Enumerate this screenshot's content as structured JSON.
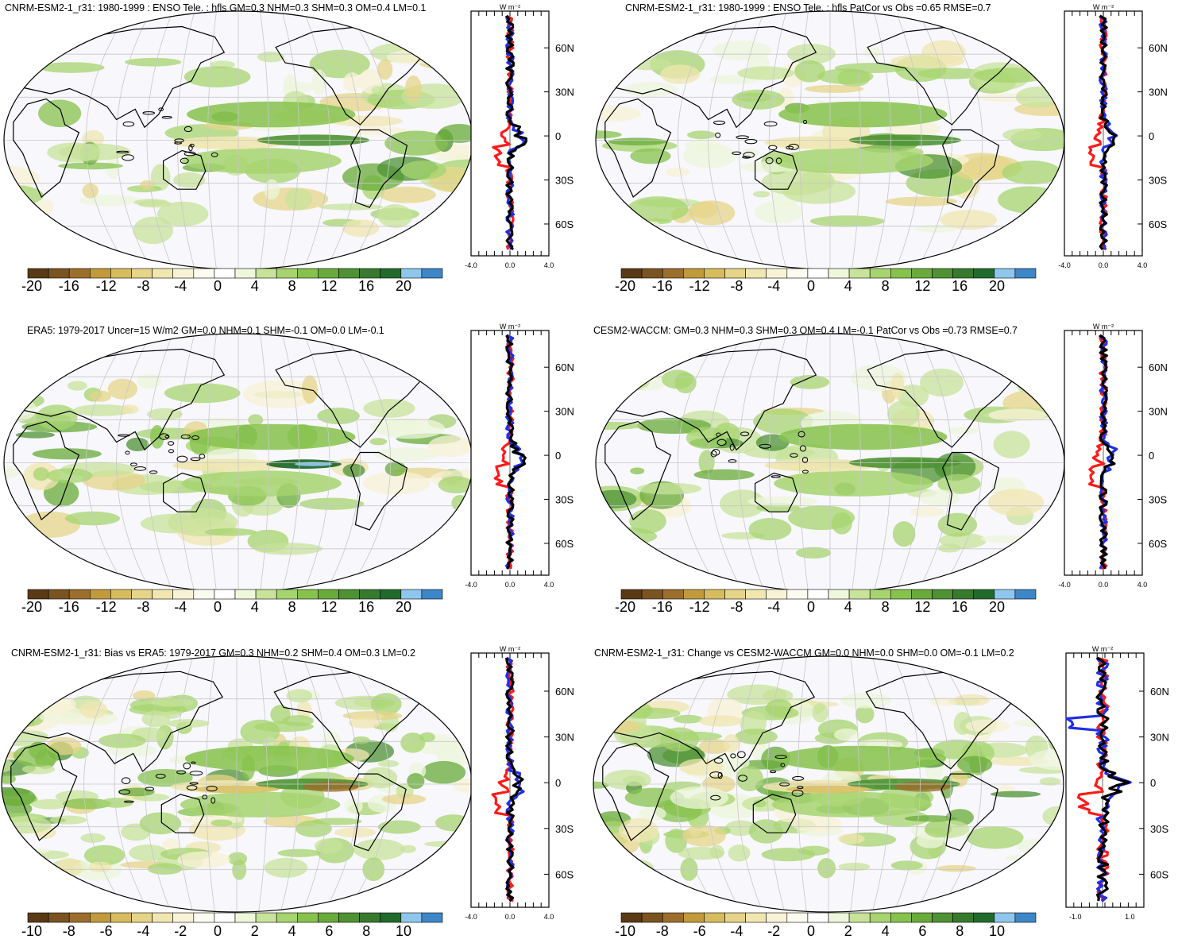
{
  "colormap": {
    "colors": [
      "#5a3a14",
      "#7a5420",
      "#9c6e2c",
      "#c19a3c",
      "#d7bc5e",
      "#e6d488",
      "#f0e6b0",
      "#f8f2d6",
      "#fcfbef",
      "#ffffff",
      "#eef6dc",
      "#c7e39a",
      "#a6d46e",
      "#86c24c",
      "#68ab3a",
      "#4e9234",
      "#377a2e",
      "#226a2c",
      "#8ec6ee",
      "#3d87c8"
    ]
  },
  "series_colors": {
    "red": "#ff1a1a",
    "blue": "#1f2fe6",
    "black": "#000000"
  },
  "panels": [
    {
      "id": "p1",
      "title": "CNRM-ESM2-1_r31: 1980-1999 : ENSO Tele. : hfls GM=0.3 NHM=0.3 SHM=0.3 OM=0.4 LM=0.1",
      "cbar_labels": [
        "-20",
        "-16",
        "-12",
        "-8",
        "-4",
        "0",
        "4",
        "8",
        "12",
        "16",
        "20"
      ],
      "unit": "W m⁻²",
      "lat_labels": [
        "60N",
        "30N",
        "0",
        "30S",
        "60S"
      ],
      "prof_ticks": [
        "-4.0",
        "0.0",
        "4.0"
      ]
    },
    {
      "id": "p2",
      "title": "CNRM-ESM2-1_r31: 1980-1999 : ENSO Tele. : hfls PatCor vs Obs =0.65 RMSE=0.7",
      "cbar_labels": [
        "-20",
        "-16",
        "-12",
        "-8",
        "-4",
        "0",
        "4",
        "8",
        "12",
        "16",
        "20"
      ],
      "unit": "W m⁻²",
      "lat_labels": [
        "60N",
        "30N",
        "0",
        "30S",
        "60S"
      ],
      "prof_ticks": [
        "-4.0",
        "0.0",
        "4.0"
      ]
    },
    {
      "id": "p3",
      "title": "ERA5: 1979-2017 Uncer=15 W/m2 GM=0.0 NHM=0.1 SHM=-0.1 OM=0.0 LM=-0.1",
      "cbar_labels": [
        "-20",
        "-16",
        "-12",
        "-8",
        "-4",
        "0",
        "4",
        "8",
        "12",
        "16",
        "20"
      ],
      "unit": "W m⁻²",
      "lat_labels": [
        "60N",
        "30N",
        "0",
        "30S",
        "60S"
      ],
      "prof_ticks": [
        "-4.0",
        "0.0",
        "4.0"
      ]
    },
    {
      "id": "p4",
      "title": "CESM2-WACCM: GM=0.3 NHM=0.3 SHM=0.3 OM=0.4 LM=-0.1 PatCor vs Obs =0.73 RMSE=0.7",
      "cbar_labels": [
        "-20",
        "-16",
        "-12",
        "-8",
        "-4",
        "0",
        "4",
        "8",
        "12",
        "16",
        "20"
      ],
      "unit": "W m⁻²",
      "lat_labels": [
        "60N",
        "30N",
        "0",
        "30S",
        "60S"
      ],
      "prof_ticks": [
        "-4.0",
        "0.0",
        "4.0"
      ]
    },
    {
      "id": "p5",
      "title": "CNRM-ESM2-1_r31: Bias vs ERA5: 1979-2017 GM=0.3 NHM=0.2 SHM=0.4 OM=0.3 LM=0.2",
      "cbar_labels": [
        "-10",
        "-8",
        "-6",
        "-4",
        "-2",
        "0",
        "2",
        "4",
        "6",
        "8",
        "10"
      ],
      "unit": "W m⁻²",
      "lat_labels": [
        "60N",
        "30N",
        "0",
        "30S",
        "60S"
      ],
      "prof_ticks": [
        "-4.0",
        "0.0",
        "4.0"
      ]
    },
    {
      "id": "p6",
      "title": "CNRM-ESM2-1_r31: Change vs CESM2-WACCM GM=0.0 NHM=0.0 SHM=0.0 OM=-0.1 LM=0.2",
      "cbar_labels": [
        "-10",
        "-8",
        "-6",
        "-4",
        "-2",
        "0",
        "2",
        "4",
        "6",
        "8",
        "10"
      ],
      "unit": "W m⁻²",
      "lat_labels": [
        "60N",
        "30N",
        "0",
        "30S",
        "60S"
      ],
      "prof_ticks": [
        "-1.0",
        "1.0"
      ]
    }
  ]
}
